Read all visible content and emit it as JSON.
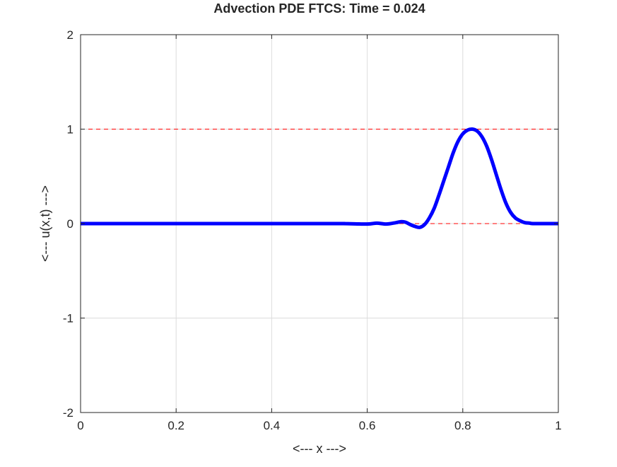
{
  "chart_data": {
    "type": "line",
    "title": "Advection PDE FTCS: Time = 0.024",
    "xlabel": "<--- x --->",
    "ylabel": "<--- u(x,t) --->",
    "xlim": [
      0,
      1
    ],
    "ylim": [
      -2,
      2
    ],
    "xticks": [
      0,
      0.2,
      0.4,
      0.6,
      0.8,
      1
    ],
    "xtick_labels": [
      "0",
      "0.2",
      "0.4",
      "0.6",
      "0.8",
      "1"
    ],
    "yticks": [
      -2,
      -1,
      0,
      1,
      2
    ],
    "ytick_labels": [
      "-2",
      "-1",
      "0",
      "1",
      "2"
    ],
    "grid": true,
    "reference_lines": [
      {
        "y": 1,
        "color": "#ff0000",
        "style": "dashed"
      },
      {
        "y": 0,
        "color": "#ff0000",
        "style": "dashed"
      }
    ],
    "series": [
      {
        "color": "#0000ff",
        "x": [
          0,
          0.5,
          0.55,
          0.6,
          0.62,
          0.64,
          0.66,
          0.67,
          0.68,
          0.69,
          0.7,
          0.71,
          0.72,
          0.73,
          0.74,
          0.75,
          0.76,
          0.77,
          0.78,
          0.79,
          0.8,
          0.81,
          0.82,
          0.83,
          0.84,
          0.85,
          0.86,
          0.87,
          0.88,
          0.89,
          0.9,
          0.91,
          0.92,
          0.93,
          0.94,
          0.95,
          1.0
        ],
        "y": [
          0,
          0,
          0,
          -0.005,
          0.005,
          -0.005,
          0.01,
          0.02,
          0.015,
          -0.01,
          -0.03,
          -0.04,
          -0.01,
          0.06,
          0.16,
          0.3,
          0.45,
          0.6,
          0.75,
          0.87,
          0.95,
          0.99,
          1.0,
          0.98,
          0.92,
          0.82,
          0.68,
          0.52,
          0.36,
          0.22,
          0.12,
          0.06,
          0.03,
          0.01,
          0.005,
          0,
          0
        ]
      }
    ]
  }
}
